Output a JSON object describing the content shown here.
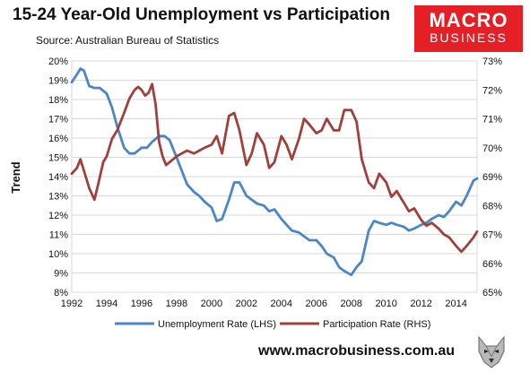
{
  "header": {
    "title": "15-24 Year-Old Unemployment vs Participation",
    "subtitle": "Source: Australian Bureau of Statistics"
  },
  "logo": {
    "line1": "MACRO",
    "line2": "BUSINESS"
  },
  "footer": {
    "website": "www.macrobusiness.com.au"
  },
  "colors": {
    "unemployment": "#4a86c8",
    "participation": "#a1403b",
    "logo_bg": "#e41f26"
  },
  "chart_data": {
    "type": "line",
    "ylabel": "Trend",
    "xlim": [
      1992,
      2015.2
    ],
    "ylim_left": [
      8,
      20
    ],
    "ylim_right": [
      65,
      73
    ],
    "x_ticks": [
      1992,
      1994,
      1996,
      1998,
      2000,
      2002,
      2004,
      2006,
      2008,
      2010,
      2012,
      2014
    ],
    "y_ticks_left": [
      "8%",
      "9%",
      "10%",
      "11%",
      "12%",
      "13%",
      "14%",
      "15%",
      "16%",
      "17%",
      "18%",
      "19%",
      "20%"
    ],
    "y_ticks_right": [
      "65%",
      "66%",
      "67%",
      "68%",
      "69%",
      "70%",
      "71%",
      "72%",
      "73%"
    ],
    "legend_position": "bottom",
    "series": [
      {
        "name": "Unemployment Rate (LHS)",
        "axis": "left",
        "x": [
          1992.0,
          1992.3,
          1992.5,
          1992.7,
          1993.0,
          1993.3,
          1993.6,
          1994.0,
          1994.3,
          1994.6,
          1995.0,
          1995.3,
          1995.6,
          1996.0,
          1996.3,
          1996.6,
          1997.0,
          1997.3,
          1997.6,
          1998.0,
          1998.3,
          1998.6,
          1999.0,
          1999.3,
          1999.6,
          2000.0,
          2000.3,
          2000.6,
          2001.0,
          2001.3,
          2001.6,
          2002.0,
          2002.3,
          2002.6,
          2003.0,
          2003.3,
          2003.6,
          2004.0,
          2004.3,
          2004.6,
          2005.0,
          2005.3,
          2005.6,
          2006.0,
          2006.3,
          2006.6,
          2007.0,
          2007.3,
          2007.6,
          2008.0,
          2008.3,
          2008.6,
          2009.0,
          2009.3,
          2009.6,
          2010.0,
          2010.3,
          2010.6,
          2011.0,
          2011.3,
          2011.6,
          2012.0,
          2012.3,
          2012.6,
          2013.0,
          2013.3,
          2013.6,
          2014.0,
          2014.3,
          2014.6,
          2015.0,
          2015.2
        ],
        "values": [
          18.9,
          19.3,
          19.6,
          19.5,
          18.7,
          18.6,
          18.6,
          18.3,
          17.6,
          16.6,
          15.5,
          15.2,
          15.2,
          15.5,
          15.5,
          15.8,
          16.1,
          16.1,
          15.9,
          15.0,
          14.3,
          13.6,
          13.2,
          13.0,
          12.7,
          12.4,
          11.7,
          11.8,
          12.8,
          13.7,
          13.7,
          13.0,
          12.8,
          12.6,
          12.5,
          12.2,
          12.3,
          11.8,
          11.5,
          11.2,
          11.1,
          10.9,
          10.7,
          10.7,
          10.4,
          10.0,
          9.8,
          9.3,
          9.1,
          8.9,
          9.3,
          9.6,
          11.2,
          11.7,
          11.6,
          11.5,
          11.6,
          11.5,
          11.4,
          11.2,
          11.3,
          11.5,
          11.6,
          11.8,
          12.0,
          11.9,
          12.2,
          12.7,
          12.5,
          13.0,
          13.8,
          13.9
        ]
      },
      {
        "name": "Participation Rate (RHS)",
        "axis": "right",
        "x": [
          1992.0,
          1992.3,
          1992.5,
          1992.7,
          1993.0,
          1993.3,
          1993.5,
          1993.8,
          1994.0,
          1994.3,
          1994.6,
          1995.0,
          1995.3,
          1995.6,
          1995.8,
          1996.0,
          1996.2,
          1996.4,
          1996.6,
          1996.8,
          1997.0,
          1997.2,
          1997.4,
          1997.6,
          1997.8,
          1998.0,
          1998.3,
          1998.6,
          1999.0,
          1999.3,
          1999.6,
          2000.0,
          2000.3,
          2000.6,
          2001.0,
          2001.3,
          2001.6,
          2002.0,
          2002.3,
          2002.6,
          2003.0,
          2003.3,
          2003.6,
          2004.0,
          2004.3,
          2004.6,
          2005.0,
          2005.3,
          2005.6,
          2006.0,
          2006.3,
          2006.6,
          2007.0,
          2007.3,
          2007.6,
          2008.0,
          2008.3,
          2008.6,
          2009.0,
          2009.3,
          2009.6,
          2010.0,
          2010.3,
          2010.6,
          2011.0,
          2011.3,
          2011.6,
          2012.0,
          2012.3,
          2012.6,
          2013.0,
          2013.3,
          2013.6,
          2014.0,
          2014.3,
          2014.6,
          2015.0,
          2015.2
        ],
        "values": [
          69.1,
          69.3,
          69.6,
          69.2,
          68.6,
          68.2,
          68.7,
          69.5,
          69.7,
          70.3,
          70.6,
          71.2,
          71.7,
          72.0,
          72.1,
          72.0,
          71.8,
          71.9,
          72.2,
          71.5,
          70.2,
          69.7,
          69.4,
          69.5,
          69.6,
          69.7,
          69.8,
          69.9,
          69.8,
          69.9,
          70.0,
          70.1,
          70.4,
          69.8,
          71.1,
          71.2,
          70.6,
          69.4,
          69.8,
          70.5,
          70.1,
          69.3,
          69.5,
          70.4,
          70.1,
          69.6,
          70.3,
          71.0,
          70.8,
          70.5,
          70.6,
          71.0,
          70.6,
          70.6,
          71.3,
          71.3,
          70.9,
          69.6,
          68.8,
          68.6,
          69.1,
          68.8,
          68.3,
          68.5,
          68.1,
          67.8,
          67.9,
          67.5,
          67.3,
          67.4,
          67.2,
          67.0,
          66.9,
          66.6,
          66.4,
          66.6,
          66.9,
          67.1
        ]
      }
    ]
  }
}
